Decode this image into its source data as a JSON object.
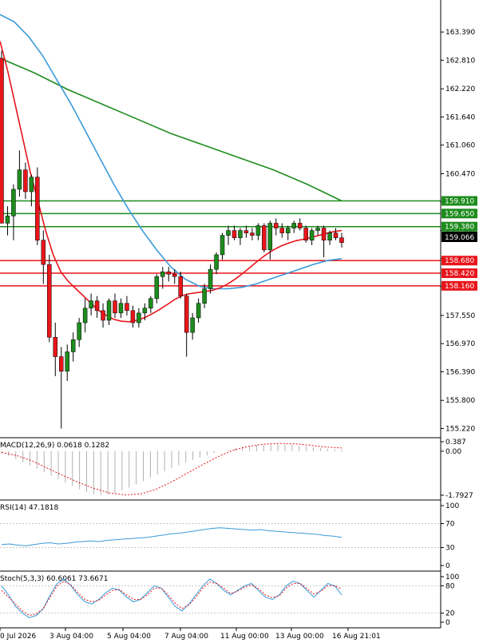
{
  "chart_data": {
    "type": "candlestick",
    "x_ticks": [
      "0 Jul 2026",
      "3 Aug 04:00",
      "5 Aug 04:00",
      "7 Aug 04:00",
      "11 Aug 00:00",
      "13 Aug 00:00",
      "16 Aug 21:01"
    ],
    "price": {
      "y_ticks": [
        "163.390",
        "162.810",
        "162.220",
        "161.640",
        "161.060",
        "160.470",
        "159.890",
        "159.300",
        "158.720",
        "158.140",
        "157.550",
        "156.970",
        "156.390",
        "155.800",
        "155.220"
      ],
      "ylim": [
        155.03,
        164.05
      ],
      "current_price": "159.066",
      "levels": [
        {
          "label": "159.910",
          "value": 159.91,
          "color": "#1d8c1d"
        },
        {
          "label": "159.650",
          "value": 159.65,
          "color": "#1d8c1d"
        },
        {
          "label": "159.380",
          "value": 159.38,
          "color": "#1d8c1d"
        },
        {
          "label": "158.680",
          "value": 158.68,
          "color": "#e8151b"
        },
        {
          "label": "158.420",
          "value": 158.42,
          "color": "#e8151b"
        },
        {
          "label": "158.160",
          "value": 158.16,
          "color": "#e8151b"
        }
      ],
      "candles": [
        [
          162.85,
          163.0,
          159.5,
          159.45
        ],
        [
          159.45,
          159.8,
          159.2,
          159.6
        ],
        [
          159.6,
          160.25,
          159.1,
          160.15
        ],
        [
          160.15,
          160.95,
          160.0,
          160.55
        ],
        [
          160.55,
          160.7,
          159.95,
          160.1
        ],
        [
          160.1,
          160.45,
          159.8,
          160.4
        ],
        [
          160.4,
          160.6,
          159.0,
          159.1
        ],
        [
          159.1,
          159.3,
          158.2,
          158.6
        ],
        [
          158.6,
          158.8,
          157.0,
          157.1
        ],
        [
          157.1,
          157.4,
          156.3,
          156.7
        ],
        [
          156.7,
          156.9,
          155.22,
          156.4
        ],
        [
          156.4,
          156.95,
          156.2,
          156.8
        ],
        [
          156.8,
          157.2,
          156.6,
          157.05
        ],
        [
          157.05,
          157.5,
          156.9,
          157.4
        ],
        [
          157.4,
          157.9,
          157.2,
          157.7
        ],
        [
          157.7,
          158.0,
          157.55,
          157.85
        ],
        [
          157.85,
          157.95,
          157.5,
          157.65
        ],
        [
          157.65,
          157.8,
          157.3,
          157.45
        ],
        [
          157.45,
          157.9,
          157.35,
          157.85
        ],
        [
          157.85,
          158.0,
          157.5,
          157.6
        ],
        [
          157.6,
          157.9,
          157.5,
          157.8
        ],
        [
          157.8,
          157.95,
          157.55,
          157.65
        ],
        [
          157.65,
          157.75,
          157.3,
          157.4
        ],
        [
          157.4,
          157.7,
          157.3,
          157.6
        ],
        [
          157.6,
          157.8,
          157.45,
          157.7
        ],
        [
          157.7,
          157.95,
          157.6,
          157.9
        ],
        [
          157.9,
          158.4,
          157.8,
          158.35
        ],
        [
          158.35,
          158.55,
          158.1,
          158.45
        ],
        [
          158.45,
          158.55,
          158.25,
          158.4
        ],
        [
          158.4,
          158.5,
          158.2,
          158.35
        ],
        [
          158.35,
          158.45,
          157.9,
          157.95
        ],
        [
          157.95,
          158.0,
          156.7,
          157.2
        ],
        [
          157.2,
          157.6,
          157.05,
          157.5
        ],
        [
          157.5,
          157.9,
          157.4,
          157.8
        ],
        [
          157.8,
          158.2,
          157.7,
          158.1
        ],
        [
          158.1,
          158.6,
          158.0,
          158.5
        ],
        [
          158.5,
          158.85,
          158.4,
          158.8
        ],
        [
          158.8,
          159.25,
          158.7,
          159.2
        ],
        [
          159.2,
          159.4,
          159.0,
          159.3
        ],
        [
          159.3,
          159.4,
          159.1,
          159.15
        ],
        [
          159.15,
          159.35,
          159.0,
          159.3
        ],
        [
          159.3,
          159.4,
          159.15,
          159.25
        ],
        [
          159.25,
          159.35,
          159.1,
          159.2
        ],
        [
          159.2,
          159.45,
          159.1,
          159.4
        ],
        [
          159.4,
          159.45,
          158.85,
          158.9
        ],
        [
          158.9,
          159.5,
          158.7,
          159.45
        ],
        [
          159.45,
          159.55,
          159.2,
          159.35
        ],
        [
          159.35,
          159.45,
          159.15,
          159.25
        ],
        [
          159.25,
          159.4,
          159.1,
          159.35
        ],
        [
          159.35,
          159.5,
          159.25,
          159.45
        ],
        [
          159.45,
          159.55,
          159.3,
          159.35
        ],
        [
          159.35,
          159.4,
          159.05,
          159.1
        ],
        [
          159.1,
          159.35,
          159.0,
          159.3
        ],
        [
          159.3,
          159.4,
          159.2,
          159.35
        ],
        [
          159.35,
          159.4,
          158.75,
          159.1
        ],
        [
          159.1,
          159.3,
          159.0,
          159.25
        ],
        [
          159.25,
          159.35,
          159.1,
          159.15
        ],
        [
          159.15,
          159.25,
          158.95,
          159.05
        ]
      ],
      "ma_red": [
        163.2,
        162.6,
        161.9,
        161.2,
        160.5,
        159.9,
        159.3,
        158.8,
        158.45,
        158.25,
        158.1,
        157.95,
        157.8,
        157.65,
        157.55,
        157.47,
        157.43,
        157.42,
        157.45,
        157.5,
        157.58,
        157.67,
        157.77,
        157.88,
        157.96,
        158.0,
        158.02,
        158.04,
        158.07,
        158.12,
        158.2,
        158.3,
        158.42,
        158.55,
        158.68,
        158.8,
        158.9,
        158.98,
        159.04,
        159.09,
        159.12,
        159.16,
        159.2,
        159.24,
        159.28,
        159.3
      ],
      "ma_blue": [
        163.75,
        163.6,
        163.3,
        162.9,
        162.4,
        161.9,
        161.35,
        160.8,
        160.25,
        159.75,
        159.3,
        158.9,
        158.55,
        158.3,
        158.15,
        158.1,
        158.1,
        158.13,
        158.2,
        158.3,
        158.4,
        158.5,
        158.6,
        158.68,
        158.72
      ],
      "ma_green": [
        162.85,
        162.55,
        162.2,
        161.9,
        161.6,
        161.3,
        161.05,
        160.8,
        160.55,
        160.25,
        159.91
      ]
    },
    "macd": {
      "label": "MACD(12,26,9) 0.0618 0.1282",
      "y_ticks": [
        "0.387",
        "0.00",
        "-1.7927"
      ],
      "histogram": [
        -0.1,
        -0.2,
        -0.32,
        -0.45,
        -0.58,
        -0.72,
        -0.86,
        -1.0,
        -1.14,
        -1.28,
        -1.42,
        -1.55,
        -1.66,
        -1.75,
        -1.79,
        -1.77,
        -1.7,
        -1.6,
        -1.48,
        -1.35,
        -1.22,
        -1.08,
        -0.95,
        -0.82,
        -0.7,
        -0.58,
        -0.47,
        -0.36,
        -0.26,
        -0.17,
        -0.08,
        0.0,
        0.07,
        0.13,
        0.18,
        0.22,
        0.25,
        0.27,
        0.28,
        0.28,
        0.27,
        0.25,
        0.22,
        0.19,
        0.16,
        0.13,
        0.1,
        0.08,
        0.06
      ],
      "signal": [
        -0.05,
        -0.18,
        -0.4,
        -0.7,
        -1.0,
        -1.28,
        -1.52,
        -1.7,
        -1.78,
        -1.74,
        -1.55,
        -1.25,
        -0.9,
        -0.55,
        -0.22,
        0.05,
        0.2,
        0.29,
        0.32,
        0.3,
        0.24,
        0.17,
        0.13
      ]
    },
    "rsi": {
      "label": "RSI(14) 47.1818",
      "y_ticks": [
        "100",
        "70",
        "30",
        "0"
      ],
      "values": [
        35,
        36,
        34,
        33,
        35,
        37,
        38,
        36,
        37,
        39,
        40,
        41,
        40,
        42,
        43,
        44,
        45,
        46,
        47,
        49,
        51,
        53,
        54,
        56,
        58,
        60,
        62,
        63,
        62,
        61,
        60,
        59,
        60,
        58,
        57,
        56,
        55,
        54,
        53,
        52,
        50,
        49,
        47
      ]
    },
    "stoch": {
      "label": "Stoch(5,3,3) 60.6061 73.6671",
      "y_ticks": [
        "100",
        "80",
        "20",
        "0"
      ],
      "k": [
        80,
        60,
        35,
        20,
        10,
        15,
        30,
        60,
        85,
        95,
        80,
        60,
        45,
        40,
        50,
        65,
        75,
        70,
        55,
        45,
        50,
        65,
        80,
        75,
        55,
        35,
        25,
        40,
        60,
        80,
        95,
        85,
        70,
        60,
        70,
        80,
        85,
        70,
        55,
        50,
        60,
        80,
        90,
        85,
        70,
        55,
        70,
        85,
        80,
        60
      ],
      "d": [
        70,
        55,
        40,
        25,
        15,
        18,
        30,
        55,
        80,
        90,
        82,
        65,
        50,
        45,
        48,
        60,
        70,
        72,
        60,
        50,
        50,
        60,
        75,
        75,
        60,
        42,
        30,
        38,
        55,
        75,
        88,
        85,
        75,
        63,
        68,
        77,
        82,
        74,
        60,
        54,
        58,
        75,
        85,
        85,
        74,
        62,
        68,
        80,
        80,
        73
      ]
    }
  }
}
